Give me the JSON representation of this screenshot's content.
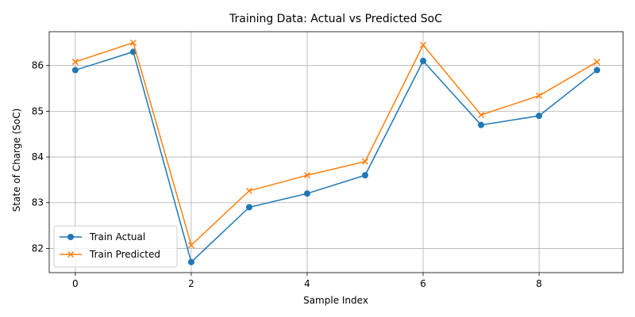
{
  "chart_data": {
    "type": "line",
    "title": "Training Data: Actual vs Predicted SoC",
    "xlabel": "Sample Index",
    "ylabel": "State of Charge (SoC)",
    "x": [
      0,
      1,
      2,
      3,
      4,
      5,
      6,
      7,
      8,
      9
    ],
    "xlim": [
      -0.45,
      9.45
    ],
    "ylim": [
      81.47,
      86.74
    ],
    "xticks": [
      0,
      2,
      4,
      6,
      8
    ],
    "yticks": [
      82,
      83,
      84,
      85,
      86
    ],
    "grid": true,
    "legend_position": "lower-left",
    "series": [
      {
        "name": "Train Actual",
        "color": "#1f77b4",
        "marker": "circle",
        "values": [
          85.9,
          86.3,
          81.7,
          82.9,
          83.2,
          83.6,
          86.1,
          84.7,
          84.9,
          85.9
        ]
      },
      {
        "name": "Train Predicted",
        "color": "#ff7f0e",
        "marker": "x",
        "values": [
          86.08,
          86.5,
          82.07,
          83.26,
          83.6,
          83.9,
          86.45,
          84.92,
          85.34,
          86.08
        ]
      }
    ]
  }
}
